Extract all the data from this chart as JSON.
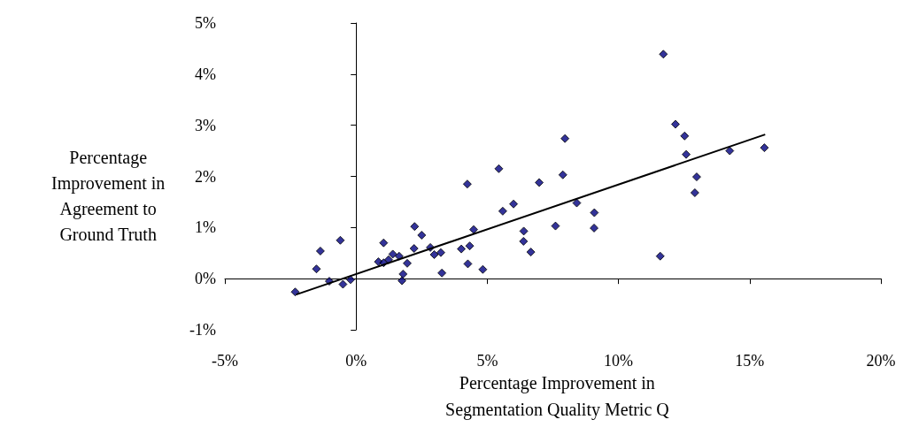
{
  "chart_data": {
    "type": "scatter",
    "xlabel": "Percentage Improvement in\nSegmentation Quality Metric Q",
    "ylabel": "Percentage\nImprovement in\nAgreement to\nGround Truth",
    "xlim": [
      -5,
      20
    ],
    "xticks": [
      {
        "value": -5,
        "label": "-5%"
      },
      {
        "value": 0,
        "label": "0%"
      },
      {
        "value": 5,
        "label": "5%"
      },
      {
        "value": 10,
        "label": "10%"
      },
      {
        "value": 15,
        "label": "15%"
      },
      {
        "value": 20,
        "label": "20%"
      }
    ],
    "ylim": [
      -1,
      5
    ],
    "yticks": [
      {
        "value": -1,
        "label": "-1%"
      },
      {
        "value": 0,
        "label": "0%"
      },
      {
        "value": 1,
        "label": "1%"
      },
      {
        "value": 2,
        "label": "2%"
      },
      {
        "value": 3,
        "label": "3%"
      },
      {
        "value": 4,
        "label": "4%"
      },
      {
        "value": 5,
        "label": "5%"
      }
    ],
    "series": [
      {
        "color": "#000080",
        "marker": "diamond",
        "x": [
          -2.32,
          -1.51,
          -1.36,
          -0.6,
          -1.02,
          -0.5,
          -0.21,
          0.85,
          1.05,
          1.05,
          1.24,
          1.4,
          1.64,
          1.79,
          1.75,
          1.95,
          2.23,
          2.21,
          2.5,
          2.83,
          2.98,
          3.23,
          3.27,
          4.01,
          4.24,
          4.33,
          4.26,
          4.48,
          4.83,
          5.44,
          5.59,
          6.0,
          6.39,
          6.38,
          6.66,
          6.98,
          7.6,
          7.96,
          7.88,
          8.41,
          9.08,
          9.07,
          11.71,
          12.17,
          12.52,
          12.58,
          12.98,
          12.91,
          11.59,
          14.24,
          15.56
        ],
        "values": [
          -0.26,
          0.19,
          0.54,
          0.75,
          -0.05,
          -0.11,
          -0.02,
          0.33,
          0.31,
          0.7,
          0.37,
          0.48,
          0.44,
          0.09,
          -0.04,
          0.3,
          1.02,
          0.59,
          0.85,
          0.61,
          0.47,
          0.51,
          0.11,
          0.58,
          1.85,
          0.64,
          0.29,
          0.96,
          0.18,
          2.15,
          1.32,
          1.46,
          0.93,
          0.73,
          0.52,
          1.88,
          1.03,
          2.74,
          2.03,
          1.48,
          1.29,
          0.99,
          4.39,
          3.02,
          2.79,
          2.43,
          1.99,
          1.68,
          0.44,
          2.5,
          2.56
        ]
      },
      {
        "type": "line",
        "color": "#000000",
        "marker": "none",
        "x": [
          -2.28,
          15.59
        ],
        "values": [
          -0.31,
          2.82
        ]
      }
    ]
  }
}
